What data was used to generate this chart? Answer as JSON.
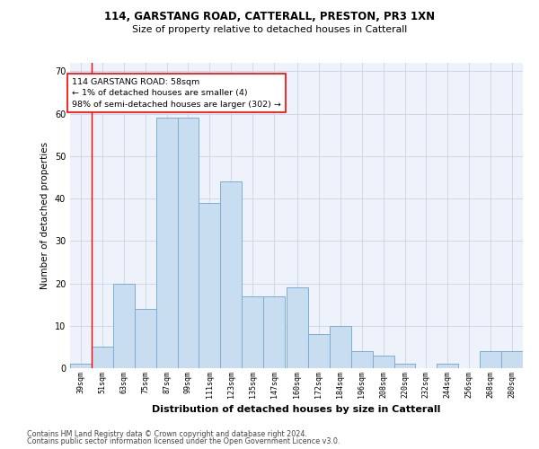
{
  "title_line1": "114, GARSTANG ROAD, CATTERALL, PRESTON, PR3 1XN",
  "title_line2": "Size of property relative to detached houses in Catterall",
  "xlabel": "Distribution of detached houses by size in Catterall",
  "ylabel": "Number of detached properties",
  "footnote1": "Contains HM Land Registry data © Crown copyright and database right 2024.",
  "footnote2": "Contains public sector information licensed under the Open Government Licence v3.0.",
  "bar_color": "#c8ddf0",
  "bar_edge_color": "#7bafd4",
  "grid_color": "#d0d8e8",
  "bg_color": "#eef2fa",
  "annotation_text": "114 GARSTANG ROAD: 58sqm\n← 1% of detached houses are smaller (4)\n98% of semi-detached houses are larger (302) →",
  "vline_x": 51,
  "categories": [
    "39sqm",
    "51sqm",
    "63sqm",
    "75sqm",
    "87sqm",
    "99sqm",
    "111sqm",
    "123sqm",
    "135sqm",
    "147sqm",
    "160sqm",
    "172sqm",
    "184sqm",
    "196sqm",
    "208sqm",
    "220sqm",
    "232sqm",
    "244sqm",
    "256sqm",
    "268sqm",
    "280sqm"
  ],
  "bin_edges": [
    39,
    51,
    63,
    75,
    87,
    99,
    111,
    123,
    135,
    147,
    160,
    172,
    184,
    196,
    208,
    220,
    232,
    244,
    256,
    268,
    280
  ],
  "values": [
    1,
    5,
    20,
    14,
    59,
    59,
    39,
    44,
    17,
    17,
    19,
    8,
    10,
    4,
    3,
    1,
    0,
    1,
    0,
    4,
    4
  ],
  "ylim": [
    0,
    72
  ],
  "yticks": [
    0,
    10,
    20,
    30,
    40,
    50,
    60,
    70
  ]
}
